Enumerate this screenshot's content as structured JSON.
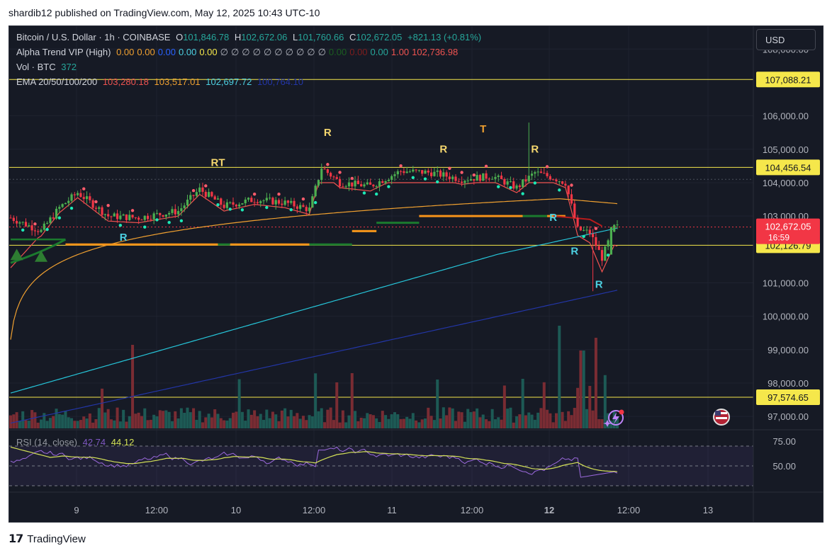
{
  "publisher_line": "shardib12 published on TradingView.com, May 12, 2025 10:43 UTC-10",
  "footer": {
    "logo": "𝟭𝟳",
    "brand": "TradingView"
  },
  "currency_button": "USD",
  "legend": {
    "symbol": "Bitcoin / U.S. Dollar · 1h · COINBASE",
    "o_label": "O",
    "o": "101,846.78",
    "h_label": "H",
    "h": "102,672.06",
    "l_label": "L",
    "l": "101,760.66",
    "c_label": "C",
    "c": "102,672.05",
    "change": "+821.13 (+0.81%)",
    "alpha": {
      "name": "Alpha Trend VIP (High)",
      "values": [
        "0.00",
        "0.00",
        "0.00",
        "0.00",
        "0.00",
        "∅",
        "∅",
        "∅",
        "∅",
        "∅",
        "∅",
        "∅",
        "∅",
        "∅",
        "∅",
        "0.00",
        "0.00",
        "0.00",
        "1.00",
        "102,736.98"
      ],
      "colors": [
        "#f0a030",
        "#f0a030",
        "#2962ff",
        "#4dd0e1",
        "#f5e74b",
        "#b2b5be",
        "#b2b5be",
        "#b2b5be",
        "#b2b5be",
        "#b2b5be",
        "#b2b5be",
        "#b2b5be",
        "#b2b5be",
        "#b2b5be",
        "#b2b5be",
        "#1b5e20",
        "#7f1d1d",
        "#26a69a",
        "#ef5350",
        "#ef5350"
      ]
    },
    "vol": {
      "name": "Vol · BTC",
      "value": "372"
    },
    "ema": {
      "name": "EMA 20/50/100/200",
      "v20": "103,280.18",
      "v50": "103,517.01",
      "v100": "102,697.72",
      "v200": "100,764.10"
    },
    "rsi": {
      "name": "RSI (14, close)",
      "v1": "42.74",
      "v2": "44.12"
    }
  },
  "colors": {
    "up": "#26a69a",
    "down": "#ef5350",
    "candle_up": "#4caf50",
    "candle_down": "#f23645",
    "ema20": "#ef5350",
    "ema50": "#f0a030",
    "ema100": "#26c6da",
    "ema200": "#2336a8",
    "level_line": "#f5e74b",
    "alpha_orange": "#f7931a",
    "alpha_green": "#1b7a2e",
    "rsi": "#9c6ade",
    "rsi_ma": "#d4e157",
    "label_R_yellow": "#f5d76e",
    "label_R_teal": "#4dd0e1",
    "label_T_orange": "#f0a030"
  },
  "chart_data": {
    "type": "candlestick",
    "title": "Bitcoin / U.S. Dollar · 1h · COINBASE",
    "x_ticks": [
      "9",
      "12:00",
      "10",
      "12:00",
      "11",
      "12:00",
      "12",
      "12:00",
      "13"
    ],
    "y_ticks": [
      "108,000.00",
      "106,000.00",
      "105,000.00",
      "104,000.00",
      "103,000.00",
      "101,000.00",
      "100,000.00",
      "99,000.00",
      "98,000.00",
      "97,000.00"
    ],
    "ylim": [
      96600,
      108600
    ],
    "horizontal_levels": [
      {
        "value": 107088.21,
        "label": "107,088.21"
      },
      {
        "value": 104456.54,
        "label": "104,456.54"
      },
      {
        "value": 102126.79,
        "label": "102,126.79"
      },
      {
        "value": 97574.65,
        "label": "97,574.65"
      }
    ],
    "last_price": {
      "value": 102672.05,
      "label": "102,672.05",
      "countdown": "16:59"
    },
    "signal_labels": [
      {
        "text": "RT",
        "bar": 68,
        "price": 104500
      },
      {
        "text": "R",
        "bar": 37,
        "price": 102260
      },
      {
        "text": "R",
        "bar": 104,
        "price": 105400
      },
      {
        "text": "R",
        "bar": 142,
        "price": 104900
      },
      {
        "text": "T",
        "bar": 155,
        "price": 105500
      },
      {
        "text": "R",
        "bar": 172,
        "price": 104900
      },
      {
        "text": "R",
        "bar": 178,
        "price": 102850
      },
      {
        "text": "R",
        "bar": 185,
        "price": 101850
      },
      {
        "text": "R",
        "bar": 193,
        "price": 100850
      }
    ],
    "rsi": {
      "ylim": [
        25,
        85
      ],
      "ticks": [
        "75.00",
        "50.00"
      ],
      "overbought": 70,
      "oversold": 30,
      "last": 42.74,
      "ma_last": 44.12
    }
  }
}
